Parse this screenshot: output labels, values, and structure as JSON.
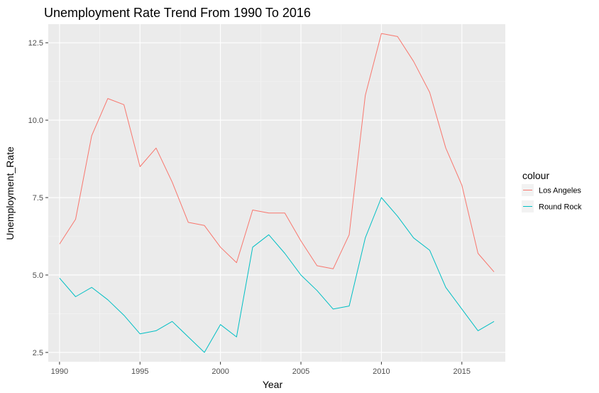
{
  "chart_data": {
    "type": "line",
    "title": "Unemployment Rate Trend From 1990 To 2016",
    "xlabel": "Year",
    "ylabel": "Unemployment_Rate",
    "xlim": [
      1989.3,
      2017.7
    ],
    "ylim": [
      2.2,
      13.1
    ],
    "x_ticks": [
      1990,
      1995,
      2000,
      2005,
      2010,
      2015
    ],
    "x_tick_labels": [
      "1990",
      "1995",
      "2000",
      "2005",
      "2010",
      "2015"
    ],
    "y_ticks": [
      2.5,
      5.0,
      7.5,
      10.0,
      12.5
    ],
    "y_tick_labels": [
      "2.5",
      "5.0",
      "7.5",
      "10.0",
      "12.5"
    ],
    "grid": true,
    "legend_title": "colour",
    "legend_position": "right",
    "x": [
      1990,
      1991,
      1992,
      1993,
      1994,
      1995,
      1996,
      1997,
      1998,
      1999,
      2000,
      2001,
      2002,
      2003,
      2004,
      2005,
      2006,
      2007,
      2008,
      2009,
      2010,
      2011,
      2012,
      2013,
      2014,
      2015,
      2016,
      2017
    ],
    "series": [
      {
        "name": "Los Angeles",
        "color": "#F8766D",
        "values": [
          6.0,
          6.8,
          9.5,
          10.7,
          10.5,
          8.5,
          9.1,
          8.0,
          6.7,
          6.6,
          5.9,
          5.4,
          7.1,
          7.0,
          7.0,
          6.1,
          5.3,
          5.2,
          6.3,
          10.8,
          12.8,
          12.7,
          11.9,
          10.9,
          9.1,
          7.9,
          5.7,
          5.1
        ]
      },
      {
        "name": "Round Rock",
        "color": "#00BFC4",
        "values": [
          4.9,
          4.3,
          4.6,
          4.2,
          3.7,
          3.1,
          3.2,
          3.5,
          3.0,
          2.5,
          3.4,
          3.0,
          5.9,
          6.3,
          5.7,
          5.0,
          4.5,
          3.9,
          4.0,
          6.2,
          7.5,
          6.9,
          6.2,
          5.8,
          4.6,
          3.9,
          3.2,
          3.5
        ]
      }
    ]
  },
  "colors": {
    "panel_bg": "#EBEBEB",
    "grid_major": "#FFFFFF",
    "grid_minor": "#F5F5F5",
    "tick_text": "#4D4D4D",
    "tick_mark": "#333333",
    "legend_key_bg": "#F2F2F2"
  }
}
